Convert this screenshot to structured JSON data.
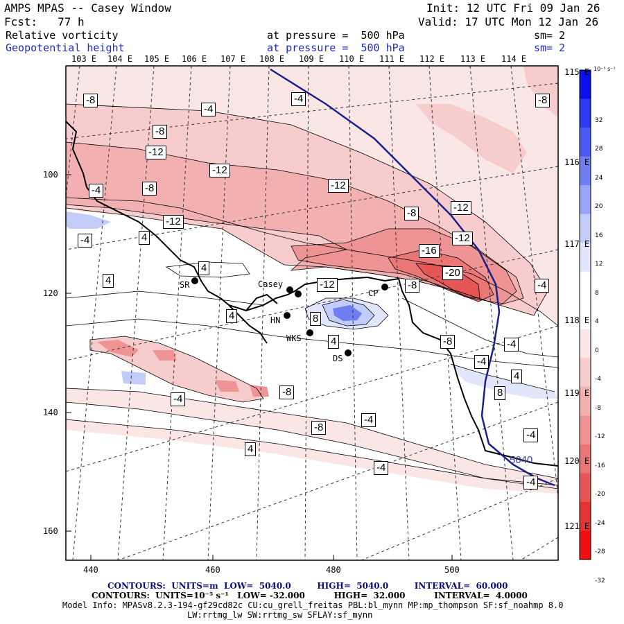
{
  "header": {
    "title": "AMPS MPAS -- Casey Window",
    "init": "Init: 12 UTC Fri 09 Jan 26",
    "forecast": "Fcst:   77 h",
    "valid": "Valid: 17 UTC Mon 12 Jan 26",
    "field1_name": "Relative vorticity",
    "field1_level": "at pressure =  500 hPa",
    "field1_sm": "sm= 2",
    "field2_name": "Geopotential height",
    "field2_level": "at pressure =  500 hPa",
    "field2_sm": "sm= 2"
  },
  "top_longitudes": [
    "103 E",
    "104 E",
    "105 E",
    "106 E",
    "107 E",
    "108 E",
    "109 E",
    "110 E",
    "111 E",
    "112 E",
    "113 E",
    "114 E"
  ],
  "right_longitudes": [
    "115 E",
    "116 E",
    "117 E",
    "118 E",
    "119 E",
    "120 E",
    "121 E"
  ],
  "x_ticks": [
    "440",
    "460",
    "480",
    "500"
  ],
  "y_ticks": [
    "100",
    "120",
    "140",
    "160"
  ],
  "colorbar": {
    "units": "10⁻⁵ s⁻¹",
    "labels": [
      "32",
      "28",
      "24",
      "20",
      "16",
      "12",
      "8",
      "4",
      "0",
      "-4",
      "-8",
      "-12",
      "-16",
      "-20",
      "-24",
      "-28",
      "-32"
    ],
    "colors": [
      "#0a10e8",
      "#2a3aee",
      "#4a5af0",
      "#6f7ff2",
      "#9aa6f5",
      "#c3cbf8",
      "#e2e6fb",
      "#ffffff",
      "#ffffff",
      "#fbe6e6",
      "#f7cccc",
      "#f2b0b0",
      "#ee9494",
      "#ea7676",
      "#e65656",
      "#e23434",
      "#ee1010"
    ]
  },
  "stations": [
    "SR",
    "Casey",
    "HN",
    "WKS",
    "DS",
    "CP"
  ],
  "contour_labels": [
    "-8",
    "-4",
    "-4",
    "-8",
    "-8",
    "-12",
    "-12",
    "-4",
    "-8",
    "-12",
    "-12",
    "-4",
    "-12",
    "-8",
    "-12",
    "4",
    "4",
    "-16",
    "-20",
    "4",
    "-12",
    "-8",
    "-4",
    "8",
    "4",
    "-8",
    "-4",
    "-4",
    "4",
    "-8",
    "8",
    "-4",
    "-4",
    "-8",
    "4",
    "-4",
    "4",
    "-4",
    "-4"
  ],
  "height_contour_label": "5040",
  "footer": {
    "contours1": "CONTOURS:  UNITS=m  LOW=  5040.0         HIGH=  5040.0         INTERVAL=  60.000",
    "contours2": "CONTOURS:  UNITS=10⁻⁵ s⁻¹   LOW= -32.000          HIGH=  32.000          INTERVAL=  4.0000",
    "model_info": "Model Info: MPASv8.2.3-194-gf29cd82c CU:cu_grell_freitas PBL:bl_mynn MP:mp_thompson SF:sf_noahmp 8.0",
    "model_info2": "LW:rrtmg_lw SW:rrtmg_sw SFLAY:sf_mynn"
  }
}
